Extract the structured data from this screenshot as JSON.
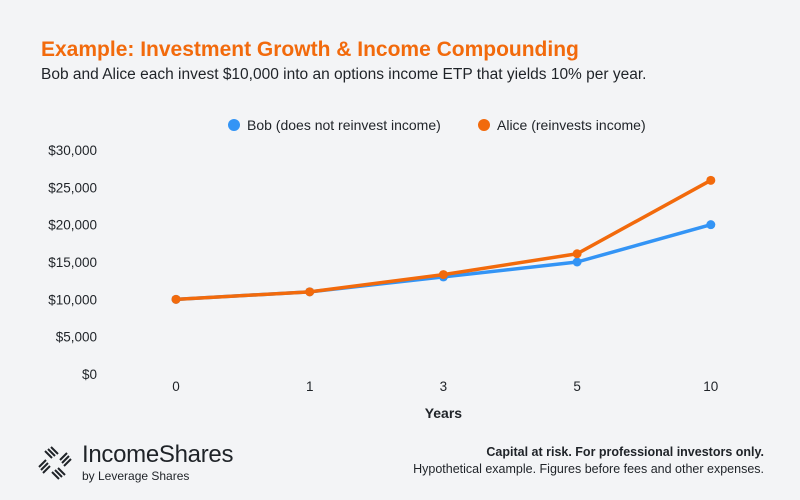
{
  "header": {
    "title": "Example: Investment Growth & Income Compounding",
    "subtitle": "Bob and Alice each invest $10,000 into an options income ETP that yields 10% per year."
  },
  "chart_data": {
    "type": "line",
    "title": "Example: Investment Growth & Income Compounding",
    "xlabel": "Years",
    "ylabel": "",
    "categories": [
      "0",
      "1",
      "3",
      "5",
      "10"
    ],
    "ylim": [
      0,
      30000
    ],
    "yticks": [
      0,
      5000,
      10000,
      15000,
      20000,
      25000,
      30000
    ],
    "ytick_labels": [
      "$0",
      "$5,000",
      "$10,000",
      "$15,000",
      "$20,000",
      "$25,000",
      "$30,000"
    ],
    "grid": false,
    "legend_placement": "top-center",
    "series": [
      {
        "name": "Bob (does not reinvest income)",
        "color": "#3394f5",
        "values": [
          10000,
          11000,
          13000,
          15000,
          20000
        ]
      },
      {
        "name": "Alice (reinvests income)",
        "color": "#f26a0c",
        "values": [
          10000,
          11000,
          13310,
          16105,
          25937
        ]
      }
    ]
  },
  "footer": {
    "brand_name": "IncomeShares",
    "brand_sub": "by Leverage Shares",
    "disclaimer_bold": "Capital at risk. For professional investors only.",
    "disclaimer": "Hypothetical example. Figures before fees and other expenses."
  }
}
